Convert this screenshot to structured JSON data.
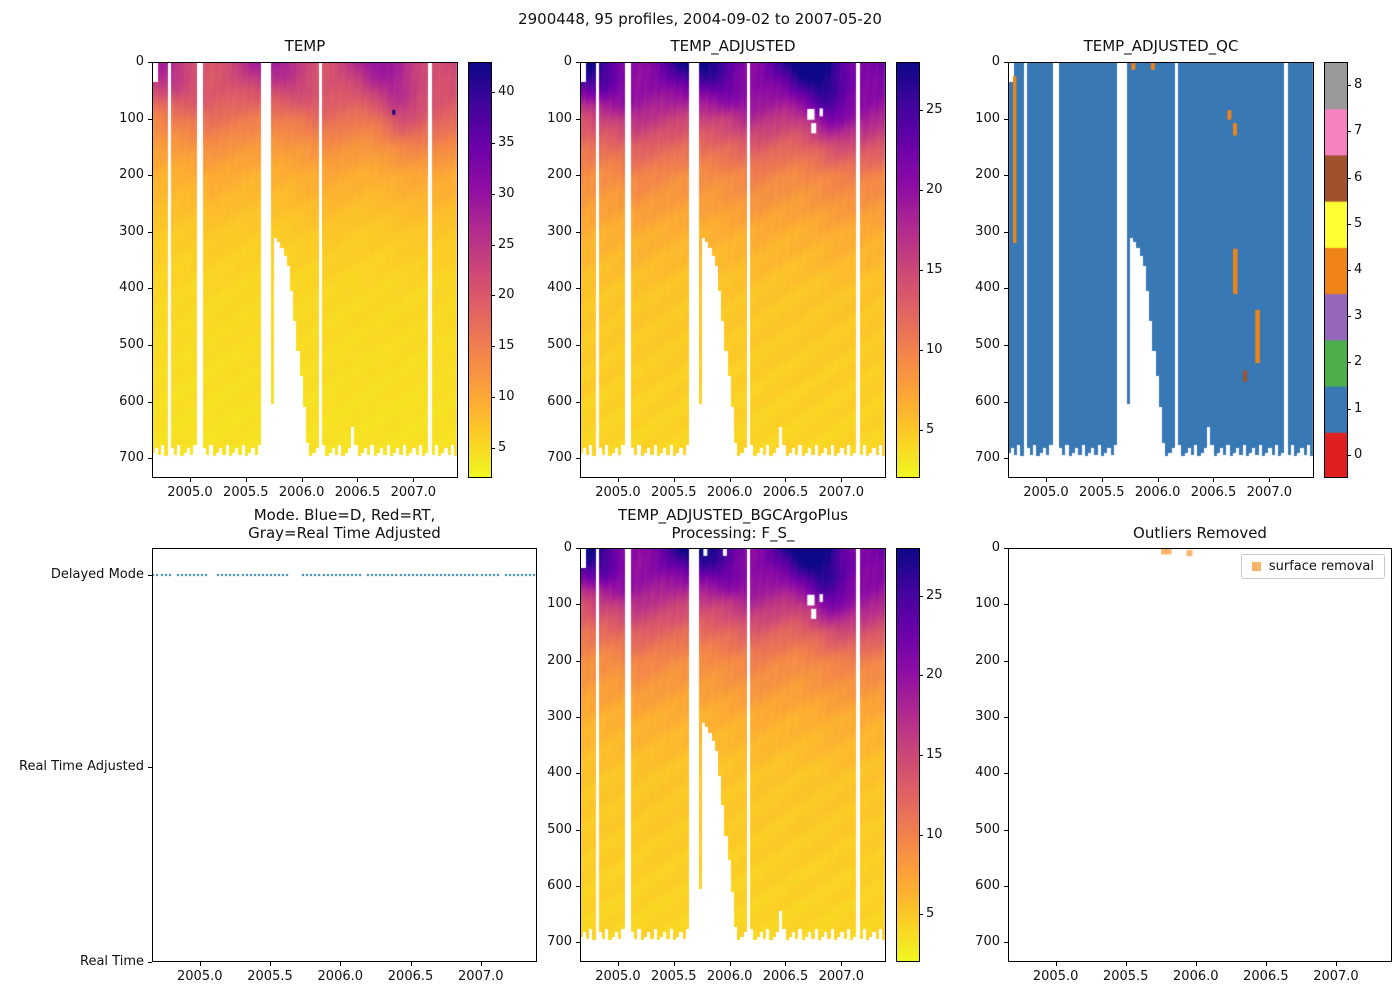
{
  "figure": {
    "title": "2900448, 95 profiles, 2004-09-02 to 2007-05-20",
    "background": "#ffffff"
  },
  "axis": {
    "time_range": [
      2004.66,
      2007.4
    ],
    "depth_range": [
      0,
      735
    ],
    "xticks": [
      2005.0,
      2005.5,
      2006.0,
      2006.5,
      2007.0
    ],
    "yticks": [
      0,
      100,
      200,
      300,
      400,
      500,
      600,
      700
    ],
    "n_profiles": 95,
    "profile_start": 2004.67,
    "profile_end": 2007.38,
    "missing_windows": [
      [
        2004.79,
        2004.815
      ],
      [
        2005.05,
        2005.105
      ],
      [
        2005.635,
        2005.73
      ],
      [
        2006.15,
        2006.175
      ],
      [
        2007.145,
        2007.175
      ]
    ],
    "bottom_breakpoints": [
      [
        2004.66,
        690
      ],
      [
        2005.73,
        690
      ],
      [
        2005.76,
        310
      ],
      [
        2005.8,
        320
      ],
      [
        2005.84,
        335
      ],
      [
        2005.88,
        360
      ],
      [
        2005.92,
        420
      ],
      [
        2005.96,
        500
      ],
      [
        2006.0,
        560
      ],
      [
        2006.03,
        620
      ],
      [
        2006.055,
        690
      ],
      [
        2007.4,
        690
      ]
    ],
    "short_profiles": [
      [
        2006.435,
        2006.465,
        645
      ]
    ],
    "surface_notch": {
      "t_end": 2004.71,
      "depth": 35
    }
  },
  "colormap": {
    "name": "plasma_r",
    "stops": [
      [
        0,
        "#f0f921"
      ],
      [
        0.1,
        "#fcce25"
      ],
      [
        0.2,
        "#fca636"
      ],
      [
        0.3,
        "#f2844b"
      ],
      [
        0.4,
        "#e16462"
      ],
      [
        0.5,
        "#cc4778"
      ],
      [
        0.6,
        "#b12a90"
      ],
      [
        0.7,
        "#8f0da4"
      ],
      [
        0.8,
        "#6a00a8"
      ],
      [
        0.9,
        "#41049d"
      ],
      [
        1,
        "#0d0887"
      ]
    ]
  },
  "qc_colors": [
    "#e02020",
    "#3878b4",
    "#4daf4a",
    "#9467bd",
    "#f08418",
    "#ffff33",
    "#a0522d",
    "#f781bf",
    "#999999"
  ],
  "grid": {
    "times": [
      2004.7,
      2004.8,
      2004.9,
      2005.0,
      2005.1,
      2005.2,
      2005.3,
      2005.4,
      2005.5,
      2005.6,
      2005.7,
      2005.8,
      2005.9,
      2006.0,
      2006.1,
      2006.2,
      2006.3,
      2006.4,
      2006.5,
      2006.6,
      2006.7,
      2006.8,
      2006.9,
      2007.0,
      2007.1,
      2007.2,
      2007.3,
      2007.4
    ],
    "depths": [
      0,
      25,
      50,
      75,
      100,
      150,
      200,
      300,
      400,
      500,
      600,
      700
    ],
    "values": [
      [
        28.5,
        27.0,
        22.0,
        17.0,
        14.0,
        11.0,
        9.0,
        6.5,
        5.2,
        4.8,
        4.4,
        4.1
      ],
      [
        27.5,
        26.5,
        23.0,
        18.0,
        15.0,
        11.5,
        9.0,
        6.5,
        5.2,
        4.8,
        4.4,
        4.1
      ],
      [
        25.0,
        24.5,
        23.0,
        19.0,
        15.5,
        11.5,
        9.0,
        6.5,
        5.2,
        4.8,
        4.4,
        4.1
      ],
      [
        22.0,
        22.0,
        21.5,
        19.5,
        16.0,
        12.0,
        9.0,
        6.5,
        5.2,
        4.8,
        4.4,
        4.1
      ],
      [
        20.5,
        20.5,
        20.3,
        19.5,
        17.0,
        12.5,
        9.5,
        6.5,
        5.2,
        4.8,
        4.4,
        4.1
      ],
      [
        20.0,
        20.0,
        19.8,
        19.0,
        17.0,
        13.0,
        10.0,
        6.8,
        5.3,
        4.8,
        4.4,
        4.1
      ],
      [
        21.0,
        20.8,
        20.0,
        18.5,
        16.5,
        12.5,
        9.5,
        6.6,
        5.2,
        4.8,
        4.4,
        4.1
      ],
      [
        23.5,
        22.0,
        20.0,
        18.0,
        16.0,
        12.0,
        9.5,
        6.5,
        5.2,
        4.8,
        4.4,
        4.1
      ],
      [
        26.5,
        23.5,
        20.5,
        18.0,
        15.5,
        12.0,
        9.0,
        6.5,
        5.2,
        4.8,
        4.4,
        4.1
      ],
      [
        28.5,
        25.0,
        21.0,
        18.0,
        15.0,
        11.5,
        9.0,
        6.4,
        5.1,
        4.8,
        4.4,
        4.1
      ],
      [
        29.5,
        26.0,
        21.5,
        18.0,
        15.0,
        11.5,
        9.0,
        6.4,
        5.1,
        4.8,
        4.4,
        4.1
      ],
      [
        28.5,
        26.5,
        22.0,
        18.5,
        15.5,
        11.5,
        9.0,
        6.5,
        5.2,
        4.8,
        4.4,
        4.1
      ],
      [
        26.5,
        25.5,
        23.0,
        19.0,
        15.5,
        12.0,
        9.0,
        6.5,
        5.2,
        4.8,
        4.4,
        4.1
      ],
      [
        23.5,
        23.3,
        22.5,
        20.0,
        16.0,
        12.0,
        9.5,
        6.6,
        5.2,
        4.8,
        4.4,
        4.1
      ],
      [
        21.5,
        21.4,
        21.0,
        20.0,
        17.0,
        12.5,
        9.5,
        6.6,
        5.2,
        4.8,
        4.4,
        4.1
      ],
      [
        20.5,
        20.4,
        20.2,
        19.5,
        17.5,
        13.0,
        10.0,
        6.8,
        5.3,
        4.8,
        4.4,
        4.1
      ],
      [
        21.5,
        21.0,
        20.5,
        19.0,
        17.0,
        13.0,
        10.0,
        6.8,
        5.3,
        4.8,
        4.4,
        4.1
      ],
      [
        24.0,
        22.5,
        20.5,
        18.5,
        16.5,
        12.5,
        9.5,
        6.6,
        5.2,
        4.8,
        4.4,
        4.1
      ],
      [
        27.0,
        24.0,
        21.0,
        18.5,
        16.0,
        12.0,
        9.5,
        6.5,
        5.2,
        4.8,
        4.4,
        4.1
      ],
      [
        29.5,
        27.0,
        23.0,
        19.5,
        16.0,
        12.0,
        9.0,
        6.5,
        5.2,
        4.8,
        4.4,
        4.1
      ],
      [
        30.0,
        28.5,
        25.0,
        21.0,
        17.0,
        12.5,
        9.5,
        6.5,
        5.2,
        4.8,
        4.4,
        4.1
      ],
      [
        29.0,
        28.5,
        27.0,
        24.0,
        20.0,
        13.0,
        9.5,
        6.6,
        5.2,
        4.8,
        4.4,
        4.1
      ],
      [
        27.0,
        26.8,
        26.3,
        25.0,
        22.0,
        14.0,
        10.0,
        6.8,
        5.3,
        4.8,
        4.4,
        4.1
      ],
      [
        24.0,
        24.0,
        23.8,
        23.0,
        21.0,
        14.5,
        10.0,
        6.8,
        5.3,
        4.8,
        4.4,
        4.1
      ],
      [
        22.0,
        22.0,
        21.8,
        21.2,
        19.5,
        14.0,
        10.0,
        6.8,
        5.3,
        4.8,
        4.4,
        4.1
      ],
      [
        21.0,
        21.0,
        20.8,
        20.3,
        19.0,
        14.0,
        10.0,
        6.8,
        5.3,
        4.8,
        4.4,
        4.1
      ],
      [
        21.5,
        21.3,
        21.0,
        20.0,
        18.0,
        13.5,
        10.0,
        6.7,
        5.3,
        4.8,
        4.4,
        4.1
      ],
      [
        23.0,
        22.0,
        21.0,
        19.5,
        17.5,
        13.0,
        9.5,
        6.6,
        5.2,
        4.8,
        4.4,
        4.1
      ]
    ]
  },
  "chart_data": [
    {
      "type": "heatmap",
      "title": "TEMP",
      "vmin": 2,
      "vmax": 43,
      "colorbar_ticks": [
        5,
        10,
        15,
        20,
        25,
        30,
        35,
        40
      ],
      "outlier_points": [
        {
          "t": 2006.82,
          "depth": 88,
          "value": 43
        }
      ]
    },
    {
      "type": "heatmap",
      "title": "TEMP_ADJUSTED",
      "vmin": 2,
      "vmax": 28,
      "colorbar_ticks": [
        5,
        10,
        15,
        20,
        25
      ],
      "masked_regions": [
        [
          2006.695,
          2006.76,
          83,
          102
        ],
        [
          2006.73,
          2006.775,
          108,
          126
        ],
        [
          2006.805,
          2006.835,
          82,
          96
        ]
      ]
    },
    {
      "type": "heatmap_categorical",
      "title": "TEMP_ADJUSTED_QC",
      "base_value": 1,
      "colorbar_ticks": [
        0,
        1,
        2,
        3,
        4,
        5,
        6,
        7,
        8
      ],
      "flagged_regions": [
        [
          2004.705,
          2004.735,
          25,
          320,
          4
        ],
        [
          2005.765,
          2005.8,
          0,
          14,
          4
        ],
        [
          2005.94,
          2005.975,
          0,
          14,
          4
        ],
        [
          2006.625,
          2006.66,
          85,
          102,
          4
        ],
        [
          2006.675,
          2006.71,
          108,
          130,
          4
        ],
        [
          2006.675,
          2006.715,
          330,
          410,
          4
        ],
        [
          2006.875,
          2006.915,
          438,
          532,
          4
        ],
        [
          2006.765,
          2006.8,
          545,
          565,
          6
        ]
      ]
    },
    {
      "type": "scatter",
      "title_lines": [
        "Mode. Blue=D, Red=RT,",
        "Gray=Real Time Adjusted"
      ],
      "categories": [
        "Delayed Mode",
        "Real Time Adjusted",
        "Real Time"
      ],
      "mode_value": "Delayed Mode",
      "marker_color": "#1f77b4"
    },
    {
      "type": "heatmap",
      "title_lines": [
        "TEMP_ADJUSTED_BGCArgoPlus",
        "Processing: F_S_"
      ],
      "vmin": 2,
      "vmax": 28,
      "colorbar_ticks": [
        5,
        10,
        15,
        20,
        25
      ],
      "masked_regions": [
        [
          2006.695,
          2006.76,
          83,
          102
        ],
        [
          2006.73,
          2006.775,
          108,
          126
        ],
        [
          2006.805,
          2006.835,
          82,
          96
        ],
        [
          2005.765,
          2005.8,
          0,
          14
        ],
        [
          2005.94,
          2005.975,
          0,
          14
        ]
      ]
    },
    {
      "type": "scatter",
      "title": "Outliers Removed",
      "legend": {
        "label": "surface removal",
        "color": "#fbb269"
      },
      "points": [
        {
          "t": 2005.775,
          "depth": 6
        },
        {
          "t": 2005.805,
          "depth": 6
        },
        {
          "t": 2005.955,
          "depth": 9
        }
      ]
    }
  ]
}
